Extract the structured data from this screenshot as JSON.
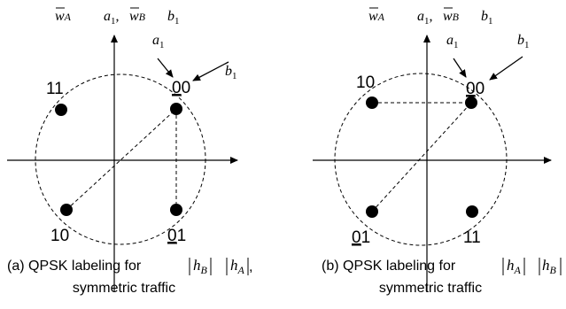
{
  "panels": [
    {
      "id": "a",
      "header": {
        "w_sym": "w",
        "w_sub": "A",
        "a_sym": "a",
        "a_sub": "1",
        "comma": ",",
        "wb_sym": "w",
        "wb_sub": "B",
        "b_sym": "b",
        "b_sub": "1"
      },
      "pointer_a": {
        "sym": "a",
        "sub": "1"
      },
      "pointer_b": {
        "sym": "b",
        "sub": "1"
      },
      "points": {
        "top_right": {
          "first": "0",
          "second": "0",
          "first_underlined": true
        },
        "top_left": {
          "text": "11"
        },
        "bottom_left": {
          "text": "10"
        },
        "bottom_right": {
          "first": "0",
          "second": "1",
          "first_underlined": true
        }
      },
      "caption": {
        "line1_prefix": "(a) QPSK labeling for",
        "h1_sym": "h",
        "h1_sub": "B",
        "h2_sym": "h",
        "h2_sub": "A",
        "trailing": ",",
        "line2": "symmetric traffic"
      }
    },
    {
      "id": "b",
      "header": {
        "w_sym": "w",
        "w_sub": "A",
        "a_sym": "a",
        "a_sub": "1",
        "comma": ",",
        "wb_sym": "w",
        "wb_sub": "B",
        "b_sym": "b",
        "b_sub": "1"
      },
      "pointer_a": {
        "sym": "a",
        "sub": "1"
      },
      "pointer_b": {
        "sym": "b",
        "sub": "1"
      },
      "points": {
        "top_right": {
          "first": "0",
          "second": "0",
          "first_underlined": true
        },
        "top_left": {
          "text": "10"
        },
        "bottom_left": {
          "first": "0",
          "second": "1",
          "first_underlined": true
        },
        "bottom_right": {
          "text": "11"
        }
      },
      "caption": {
        "line1_prefix": "(b) QPSK labeling for",
        "h1_sym": "h",
        "h1_sub": "A",
        "h2_sym": "h",
        "h2_sub": "B",
        "trailing": "",
        "line2": "symmetric traffic"
      }
    }
  ]
}
